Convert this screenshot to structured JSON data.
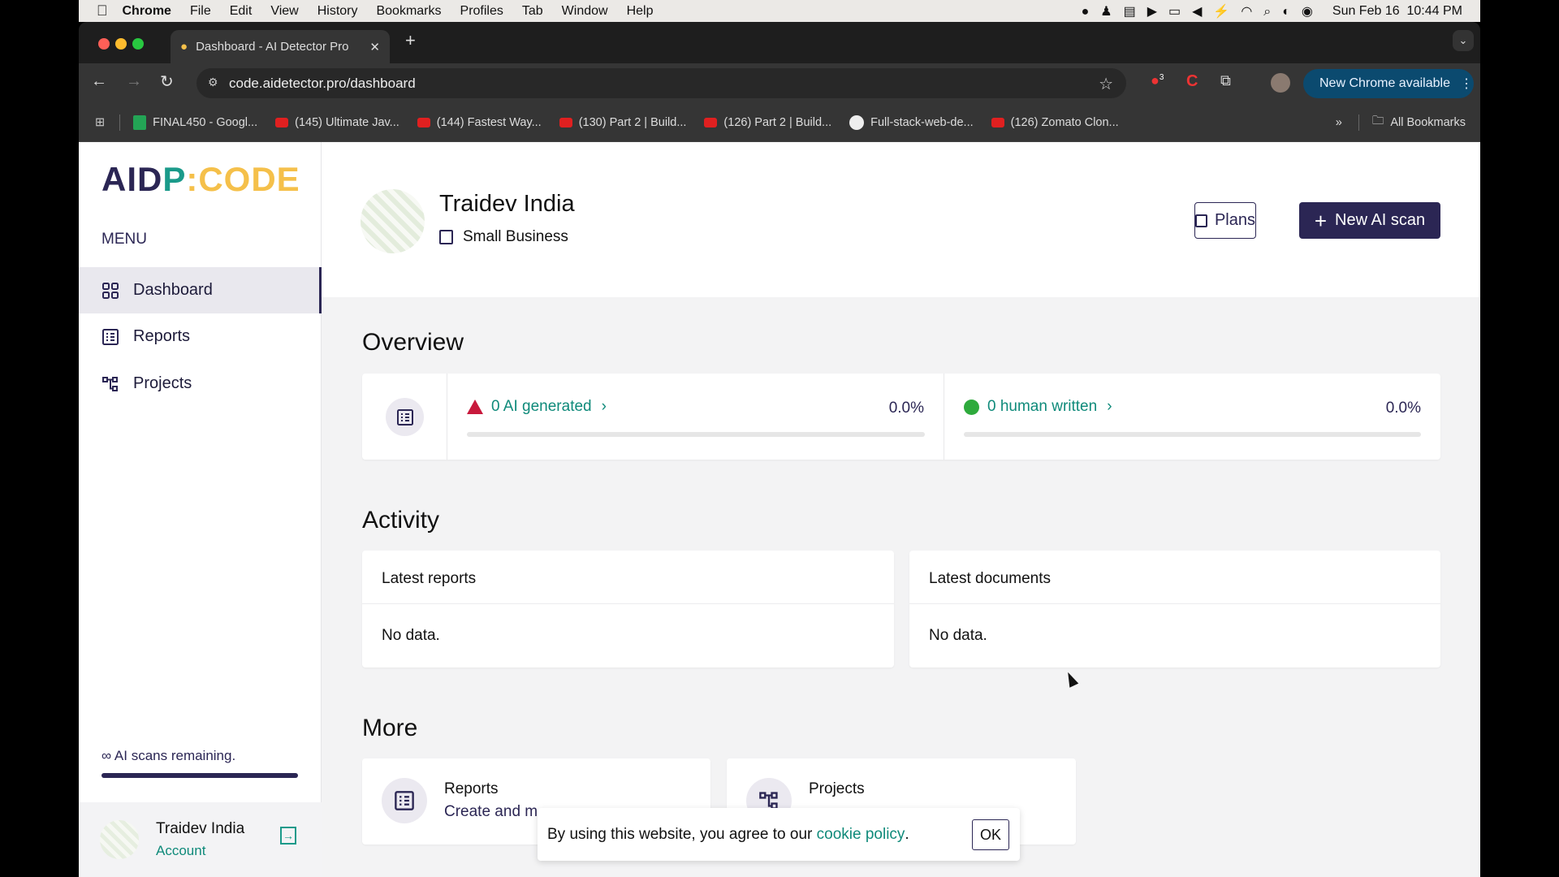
{
  "menubar": {
    "app": "Chrome",
    "items": [
      "File",
      "Edit",
      "View",
      "History",
      "Bookmarks",
      "Profiles",
      "Tab",
      "Window",
      "Help"
    ],
    "clock": "Sun Feb 16  10:44 PM"
  },
  "browser": {
    "tab_title": "Dashboard - AI Detector Pro",
    "url": "code.aidetector.pro/dashboard",
    "update_label": "New Chrome available",
    "extension_badge": "3",
    "bookmarks": [
      {
        "label": "FINAL450 - Googl...",
        "icon": "sheets-icon"
      },
      {
        "label": "(145) Ultimate Jav...",
        "icon": "youtube-icon"
      },
      {
        "label": "(144) Fastest Way...",
        "icon": "youtube-icon"
      },
      {
        "label": "(130) Part 2 | Build...",
        "icon": "youtube-icon"
      },
      {
        "label": "(126) Part 2 | Build...",
        "icon": "youtube-icon"
      },
      {
        "label": "Full-stack-web-de...",
        "icon": "github-icon"
      },
      {
        "label": "(126) Zomato Clon...",
        "icon": "youtube-icon"
      }
    ],
    "all_bookmarks": "All Bookmarks"
  },
  "sidebar": {
    "logo": "AIDP:CODE",
    "menu_label": "MENU",
    "items": [
      {
        "label": "Dashboard",
        "active": true
      },
      {
        "label": "Reports"
      },
      {
        "label": "Projects"
      }
    ],
    "scans_remaining": "∞ AI scans remaining.",
    "scans_fill": 1.0,
    "user": {
      "name": "Traidev India",
      "link": "Account"
    }
  },
  "header": {
    "org_name": "Traidev India",
    "plan": "Small Business",
    "plans_button": "Plans",
    "new_scan_button": "New AI scan"
  },
  "overview": {
    "title": "Overview",
    "ai": {
      "label": "0 AI generated",
      "percent": "0.0%",
      "fill": 0
    },
    "human": {
      "label": "0 human written",
      "percent": "0.0%",
      "fill": 0
    }
  },
  "activity": {
    "title": "Activity",
    "reports": {
      "title": "Latest reports",
      "empty": "No data."
    },
    "documents": {
      "title": "Latest documents",
      "empty": "No data."
    }
  },
  "more": {
    "title": "More",
    "reports": {
      "title": "Reports",
      "desc": "Create and m"
    },
    "projects": {
      "title": "Projects"
    }
  },
  "cookie": {
    "text": "By using this website, you agree to our ",
    "link": "cookie policy",
    "period": ".",
    "ok": "OK"
  },
  "colors": {
    "brand_navy": "#2b2654",
    "brand_teal": "#1a9a8a",
    "brand_yellow": "#f5c04a",
    "ai_red": "#c8193c",
    "human_green": "#2eaa3c"
  }
}
